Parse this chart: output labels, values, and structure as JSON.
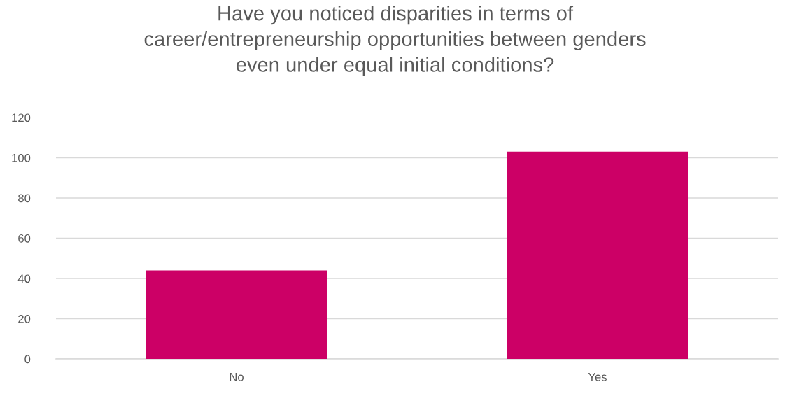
{
  "chart_data": {
    "type": "bar",
    "title": "Have you noticed disparities in terms of\ncareer/entrepreneurship opportunities between genders\neven under equal initial conditions?",
    "categories": [
      "No",
      "Yes"
    ],
    "values": [
      44,
      103
    ],
    "color": "#cc0066",
    "ylim": [
      0,
      120
    ],
    "yticks": [
      0,
      20,
      40,
      60,
      80,
      100,
      120
    ],
    "grid": "y"
  }
}
